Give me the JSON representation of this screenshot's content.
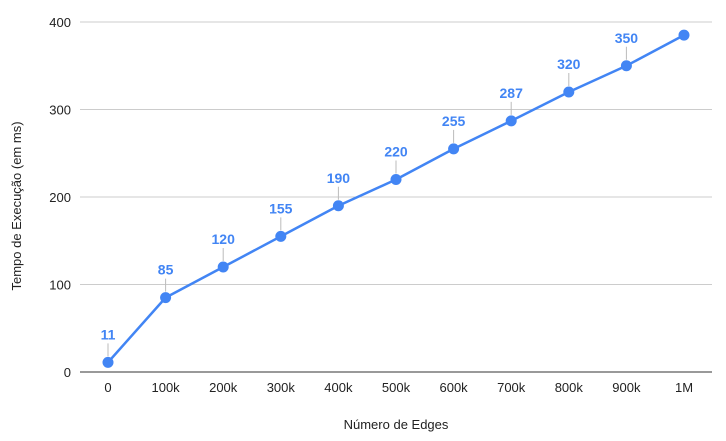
{
  "chart_data": {
    "type": "line",
    "title": "",
    "xlabel": "Número de Edges",
    "ylabel": "Tempo de Execução (em ms)",
    "categories": [
      "0",
      "100k",
      "200k",
      "300k",
      "400k",
      "500k",
      "600k",
      "700k",
      "800k",
      "900k",
      "1M"
    ],
    "series": [
      {
        "values": [
          11,
          85,
          120,
          155,
          190,
          220,
          255,
          287,
          320,
          350,
          385
        ],
        "data_labels": [
          "11",
          "85",
          "120",
          "155",
          "190",
          "220",
          "255",
          "287",
          "320",
          "350",
          ""
        ]
      }
    ],
    "ylim": [
      0,
      400
    ],
    "yticks": [
      0,
      100,
      200,
      300,
      400
    ],
    "ytick_labels": [
      "0",
      "100",
      "200",
      "300",
      "400"
    ],
    "grid": true,
    "legend": "none",
    "colors": {
      "series": "#4285f4",
      "grid": "#cccccc",
      "baseline": "#333333",
      "label_leader": "#bbbbbb"
    }
  }
}
